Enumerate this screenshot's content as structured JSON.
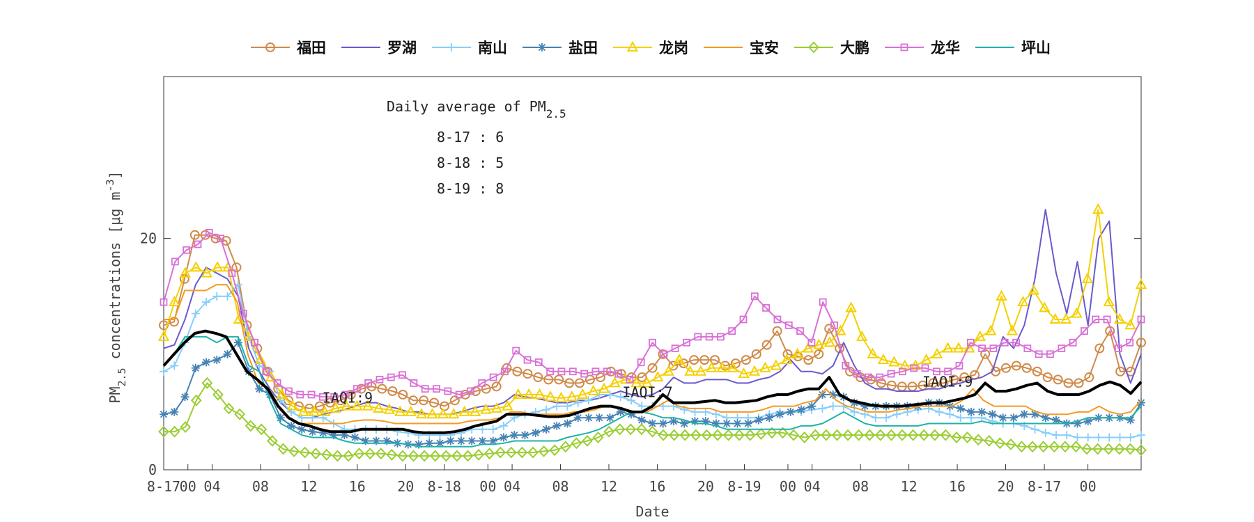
{
  "chart_data": {
    "type": "line",
    "ylabel_main": "PM",
    "ylabel_sub": "2.5",
    "ylabel_rest": " concentrations [",
    "ylabel_unit": "μg m",
    "ylabel_exp": "-3",
    "ylabel_end": "]",
    "xlabel": "Date",
    "ylim": [
      0,
      34
    ],
    "y_ticks": [
      0,
      20
    ],
    "x_range": [
      0,
      101
    ],
    "x_tick_labels": [
      {
        "x": 0,
        "label": "8-17"
      },
      {
        "x": 2.5,
        "label": "00"
      },
      {
        "x": 5,
        "label": "04"
      },
      {
        "x": 10,
        "label": "08"
      },
      {
        "x": 15,
        "label": "12"
      },
      {
        "x": 20,
        "label": "16"
      },
      {
        "x": 25,
        "label": "20"
      },
      {
        "x": 29,
        "label": "8-18"
      },
      {
        "x": 33.5,
        "label": "00"
      },
      {
        "x": 36,
        "label": "04"
      },
      {
        "x": 41,
        "label": "08"
      },
      {
        "x": 46,
        "label": "12"
      },
      {
        "x": 51,
        "label": "16"
      },
      {
        "x": 56,
        "label": "20"
      },
      {
        "x": 60,
        "label": "8-19"
      },
      {
        "x": 64.5,
        "label": "00"
      },
      {
        "x": 67,
        "label": "04"
      },
      {
        "x": 72,
        "label": "08"
      },
      {
        "x": 77,
        "label": "12"
      },
      {
        "x": 82,
        "label": "16"
      },
      {
        "x": 87,
        "label": "20"
      },
      {
        "x": 91,
        "label": "8-17"
      },
      {
        "x": 95.5,
        "label": "00"
      }
    ],
    "annotation": {
      "title_main": "Daily average of PM",
      "title_sub": "2.5",
      "lines": [
        "8-17 : 6",
        "8-18 : 5",
        "8-19 : 8"
      ]
    },
    "iaqi_labels": [
      {
        "x": 19,
        "y": 5.8,
        "text": "IAQI:9"
      },
      {
        "x": 50,
        "y": 6.3,
        "text": "IAQI:7"
      },
      {
        "x": 81,
        "y": 7.2,
        "text": "IAQI:9"
      }
    ],
    "legend_position": "top",
    "series": [
      {
        "name": "福田",
        "color": "#d08a4a",
        "marker": "circle",
        "values": [
          12.5,
          12.8,
          16.5,
          20.3,
          20.3,
          20.0,
          19.8,
          17.5,
          12.5,
          10.5,
          8.5,
          7.0,
          6.0,
          5.5,
          5.3,
          5.5,
          5.8,
          6.0,
          6.5,
          7.0,
          7.2,
          7.0,
          6.8,
          6.5,
          6.0,
          6.0,
          5.8,
          5.5,
          6.0,
          6.5,
          6.8,
          7.0,
          7.2,
          8.8,
          8.5,
          8.3,
          8.0,
          7.8,
          7.8,
          7.5,
          7.5,
          7.8,
          8.0,
          8.5,
          8.3,
          8.0,
          8.0,
          8.8,
          10.0,
          9.0,
          9.2,
          9.5,
          9.5,
          9.5,
          9.0,
          9.2,
          9.5,
          10.0,
          10.8,
          12.0,
          10.0,
          9.8,
          9.5,
          10.0,
          12.2,
          10.5,
          8.5,
          8.0,
          7.8,
          7.5,
          7.3,
          7.2,
          7.2,
          7.3,
          7.5,
          7.5,
          7.8,
          8.0,
          8.2,
          10.0,
          8.5,
          8.8,
          9.0,
          8.8,
          8.5,
          8.0,
          7.8,
          7.5,
          7.5,
          8.0,
          10.5,
          12.0,
          8.5,
          8.5,
          11.0
        ]
      },
      {
        "name": "罗湖",
        "color": "#6a5acd",
        "marker": "none",
        "values": [
          10.5,
          10.8,
          13.0,
          16.0,
          17.5,
          17.0,
          16.5,
          15.0,
          10.5,
          8.5,
          7.0,
          5.8,
          5.0,
          4.5,
          4.5,
          4.8,
          5.0,
          5.2,
          5.5,
          5.8,
          5.8,
          5.5,
          5.3,
          5.0,
          5.0,
          4.8,
          4.8,
          4.8,
          5.0,
          5.3,
          5.5,
          5.5,
          5.8,
          6.5,
          6.3,
          6.2,
          6.0,
          5.8,
          5.8,
          6.0,
          6.0,
          6.2,
          6.5,
          6.8,
          6.5,
          6.3,
          6.5,
          7.0,
          8.0,
          7.5,
          7.5,
          7.8,
          7.8,
          7.8,
          7.5,
          7.5,
          7.8,
          8.0,
          8.5,
          9.5,
          8.5,
          8.5,
          8.3,
          9.0,
          11.0,
          9.0,
          7.5,
          7.0,
          7.0,
          6.8,
          6.8,
          6.8,
          7.0,
          7.0,
          7.3,
          7.5,
          7.8,
          8.0,
          8.5,
          11.5,
          10.5,
          12.5,
          16.5,
          22.5,
          17.0,
          13.5,
          18.0,
          12.5,
          20.0,
          21.5,
          10.0,
          7.5,
          10.0
        ]
      },
      {
        "name": "南山",
        "color": "#87cefa",
        "marker": "plus",
        "values": [
          8.5,
          9.0,
          11.0,
          13.5,
          14.5,
          15.0,
          15.0,
          16.0,
          11.5,
          9.0,
          8.5,
          6.0,
          5.0,
          4.5,
          4.5,
          4.5,
          4.0,
          3.5,
          3.5,
          3.5,
          3.5,
          3.5,
          3.3,
          3.2,
          3.0,
          3.0,
          3.0,
          3.0,
          3.2,
          3.5,
          3.5,
          3.5,
          3.8,
          4.5,
          4.8,
          5.0,
          5.2,
          5.5,
          5.5,
          5.8,
          6.0,
          6.5,
          6.5,
          6.3,
          6.0,
          5.5,
          5.5,
          5.5,
          5.5,
          5.2,
          5.0,
          5.0,
          4.8,
          4.5,
          4.5,
          4.5,
          4.5,
          4.8,
          5.0,
          5.0,
          5.0,
          5.2,
          5.3,
          5.5,
          5.5,
          5.0,
          4.8,
          4.5,
          4.5,
          4.8,
          5.0,
          5.2,
          5.3,
          5.0,
          4.8,
          4.5,
          4.5,
          4.5,
          4.2,
          4.0,
          4.0,
          3.8,
          3.5,
          3.2,
          3.0,
          3.0,
          2.8,
          2.8,
          2.8,
          2.8,
          2.8,
          2.8,
          3.0
        ]
      },
      {
        "name": "盐田",
        "color": "#4682b4",
        "marker": "asterisk",
        "values": [
          4.8,
          5.0,
          6.3,
          8.8,
          9.3,
          9.5,
          10.0,
          11.0,
          8.5,
          7.0,
          6.5,
          4.5,
          3.8,
          3.5,
          3.3,
          3.2,
          3.0,
          3.0,
          2.8,
          2.5,
          2.5,
          2.5,
          2.3,
          2.2,
          2.2,
          2.3,
          2.3,
          2.5,
          2.5,
          2.5,
          2.5,
          2.5,
          2.8,
          3.0,
          3.0,
          3.2,
          3.5,
          3.8,
          4.0,
          4.5,
          4.5,
          4.5,
          4.5,
          5.0,
          4.8,
          4.3,
          4.0,
          4.0,
          4.2,
          4.0,
          4.2,
          4.2,
          4.0,
          4.0,
          4.0,
          4.0,
          4.3,
          4.5,
          4.8,
          5.0,
          5.2,
          5.5,
          6.5,
          6.5,
          6.3,
          5.8,
          5.5,
          5.5,
          5.5,
          5.5,
          5.5,
          5.5,
          5.8,
          5.8,
          5.5,
          5.3,
          5.0,
          5.0,
          4.8,
          4.5,
          4.5,
          4.8,
          4.8,
          4.5,
          4.3,
          4.0,
          4.0,
          4.2,
          4.5,
          4.5,
          4.5,
          4.3,
          5.8
        ]
      },
      {
        "name": "龙岗",
        "color": "#f5d000",
        "marker": "triangle",
        "values": [
          11.5,
          14.5,
          17.0,
          17.5,
          17.0,
          17.5,
          17.5,
          13.0,
          11.5,
          9.5,
          8.0,
          6.5,
          5.5,
          5.0,
          5.0,
          5.0,
          5.3,
          5.5,
          5.5,
          5.5,
          5.3,
          5.2,
          5.0,
          5.0,
          4.8,
          4.8,
          4.8,
          4.8,
          5.0,
          5.0,
          5.2,
          5.3,
          5.5,
          6.5,
          6.5,
          6.5,
          6.3,
          6.2,
          6.3,
          6.5,
          6.8,
          7.0,
          7.5,
          7.8,
          7.5,
          7.5,
          8.0,
          8.5,
          9.5,
          8.5,
          8.5,
          8.8,
          8.8,
          8.8,
          8.3,
          8.5,
          8.8,
          9.0,
          9.5,
          10.0,
          10.5,
          10.8,
          11.0,
          12.0,
          14.0,
          11.5,
          10.0,
          9.5,
          9.3,
          9.0,
          9.0,
          9.5,
          10.0,
          10.5,
          10.5,
          10.5,
          11.5,
          12.0,
          15.0,
          12.0,
          14.5,
          15.5,
          14.0,
          13.0,
          13.0,
          13.5,
          16.5,
          22.5,
          14.5,
          13.0,
          12.5,
          16.0
        ]
      },
      {
        "name": "宝安",
        "color": "#f59a23",
        "marker": "none",
        "values": [
          13.0,
          13.0,
          15.5,
          15.5,
          15.5,
          16.0,
          16.0,
          14.5,
          10.0,
          7.5,
          7.0,
          5.5,
          4.5,
          4.0,
          4.0,
          4.0,
          4.0,
          4.0,
          4.2,
          4.3,
          4.3,
          4.2,
          4.0,
          4.0,
          4.0,
          4.0,
          4.0,
          4.0,
          4.0,
          4.2,
          4.3,
          4.3,
          4.5,
          5.0,
          5.0,
          4.8,
          4.8,
          4.8,
          4.8,
          5.0,
          5.0,
          5.2,
          5.5,
          5.5,
          5.2,
          5.0,
          5.0,
          5.5,
          6.0,
          5.5,
          5.3,
          5.3,
          5.3,
          5.0,
          5.0,
          5.0,
          5.0,
          5.2,
          5.5,
          5.5,
          5.5,
          5.8,
          6.0,
          7.0,
          6.0,
          5.5,
          5.3,
          5.0,
          5.0,
          5.0,
          5.2,
          5.3,
          5.5,
          5.5,
          5.5,
          5.5,
          6.0,
          7.0,
          6.0,
          5.5,
          5.5,
          5.5,
          5.5,
          5.0,
          4.8,
          4.8,
          4.8,
          5.0,
          5.0,
          5.5,
          5.0,
          4.8,
          5.0,
          6.0
        ]
      },
      {
        "name": "大鹏",
        "color": "#9acd32",
        "marker": "diamond",
        "values": [
          3.3,
          3.3,
          3.7,
          6.0,
          7.5,
          6.5,
          5.3,
          4.8,
          3.8,
          3.5,
          2.5,
          1.8,
          1.6,
          1.5,
          1.4,
          1.3,
          1.2,
          1.2,
          1.4,
          1.4,
          1.4,
          1.3,
          1.2,
          1.2,
          1.2,
          1.2,
          1.2,
          1.2,
          1.2,
          1.3,
          1.4,
          1.5,
          1.5,
          1.5,
          1.5,
          1.6,
          1.7,
          2.0,
          2.3,
          2.5,
          2.8,
          3.3,
          3.5,
          3.5,
          3.5,
          3.3,
          3.0,
          3.0,
          3.0,
          3.0,
          3.0,
          3.0,
          3.0,
          3.0,
          3.0,
          3.1,
          3.2,
          3.2,
          3.0,
          2.8,
          3.0,
          3.0,
          3.0,
          3.0,
          3.0,
          3.0,
          3.0,
          3.0,
          3.0,
          3.0,
          3.0,
          3.0,
          3.0,
          2.8,
          2.8,
          2.6,
          2.5,
          2.3,
          2.2,
          2.0,
          2.0,
          2.0,
          2.0,
          2.0,
          2.0,
          1.8,
          1.8,
          1.8,
          1.8,
          1.8,
          1.7
        ]
      },
      {
        "name": "龙华",
        "color": "#da70d6",
        "marker": "square",
        "values": [
          14.5,
          18.0,
          19.0,
          19.5,
          20.5,
          20.0,
          17.0,
          13.5,
          11.0,
          8.5,
          7.5,
          6.8,
          6.5,
          6.5,
          6.3,
          6.3,
          6.5,
          7.0,
          7.5,
          7.8,
          8.0,
          8.2,
          7.5,
          7.0,
          7.0,
          6.8,
          6.5,
          6.8,
          7.5,
          8.0,
          8.5,
          10.3,
          9.5,
          9.3,
          8.5,
          8.5,
          8.5,
          8.3,
          8.5,
          8.5,
          8.3,
          7.8,
          9.3,
          11.0,
          10.0,
          10.5,
          11.0,
          11.5,
          11.5,
          11.5,
          12.0,
          13.0,
          15.0,
          14.0,
          13.0,
          12.5,
          12.0,
          11.0,
          14.5,
          12.5,
          9.0,
          8.3,
          8.0,
          8.0,
          8.3,
          8.5,
          8.8,
          8.8,
          8.5,
          8.5,
          9.0,
          11.0,
          10.5,
          10.5,
          11.0,
          11.0,
          10.5,
          10.0,
          10.0,
          10.5,
          11.0,
          12.0,
          13.0,
          13.0,
          10.5,
          11.0,
          13.0
        ]
      },
      {
        "name": "坪山",
        "color": "#20b2aa",
        "marker": "none",
        "values": [
          9.0,
          10.0,
          11.5,
          11.5,
          11.5,
          11.0,
          11.5,
          11.5,
          9.0,
          8.5,
          6.0,
          4.0,
          3.5,
          3.0,
          2.8,
          2.8,
          2.8,
          2.5,
          2.3,
          2.3,
          2.3,
          2.3,
          2.3,
          2.2,
          2.0,
          2.0,
          2.0,
          2.0,
          2.0,
          2.0,
          2.2,
          2.2,
          2.3,
          2.5,
          2.5,
          2.5,
          2.5,
          2.5,
          2.8,
          3.0,
          3.2,
          3.5,
          4.0,
          4.5,
          5.0,
          5.0,
          4.8,
          4.5,
          4.5,
          4.3,
          4.0,
          4.0,
          3.8,
          3.5,
          3.5,
          3.5,
          3.5,
          3.5,
          3.5,
          3.5,
          3.8,
          3.8,
          4.0,
          4.5,
          5.0,
          4.5,
          4.0,
          3.8,
          3.8,
          3.8,
          3.8,
          3.8,
          4.0,
          4.0,
          4.0,
          4.0,
          4.0,
          4.2,
          4.0,
          4.0,
          4.0,
          4.0,
          4.0,
          4.0,
          4.0,
          4.0,
          4.2,
          4.5,
          4.5,
          4.5,
          4.5,
          4.5,
          5.5
        ]
      },
      {
        "name": "",
        "color": "#000000",
        "marker": "none",
        "bold": true,
        "values": [
          9.0,
          10.0,
          11.0,
          11.8,
          12.0,
          11.8,
          11.5,
          10.0,
          8.5,
          7.8,
          7.0,
          5.5,
          4.5,
          4.0,
          3.8,
          3.5,
          3.3,
          3.3,
          3.3,
          3.5,
          3.5,
          3.5,
          3.5,
          3.5,
          3.3,
          3.2,
          3.2,
          3.2,
          3.3,
          3.5,
          3.8,
          4.0,
          4.2,
          4.8,
          4.8,
          4.8,
          4.7,
          4.6,
          4.6,
          4.7,
          5.0,
          5.3,
          5.5,
          5.5,
          5.3,
          5.0,
          5.0,
          5.5,
          6.5,
          5.8,
          5.8,
          5.8,
          5.9,
          6.0,
          5.8,
          5.8,
          5.9,
          6.0,
          6.3,
          6.5,
          6.5,
          6.8,
          7.0,
          7.0,
          8.0,
          6.5,
          6.0,
          5.8,
          5.6,
          5.5,
          5.5,
          5.5,
          5.6,
          5.7,
          5.8,
          5.8,
          6.0,
          6.2,
          6.5,
          7.5,
          6.8,
          6.8,
          7.0,
          7.3,
          7.5,
          6.8,
          6.5,
          6.5,
          6.5,
          6.8,
          7.3,
          7.6,
          7.3,
          6.6,
          7.6
        ]
      }
    ]
  }
}
